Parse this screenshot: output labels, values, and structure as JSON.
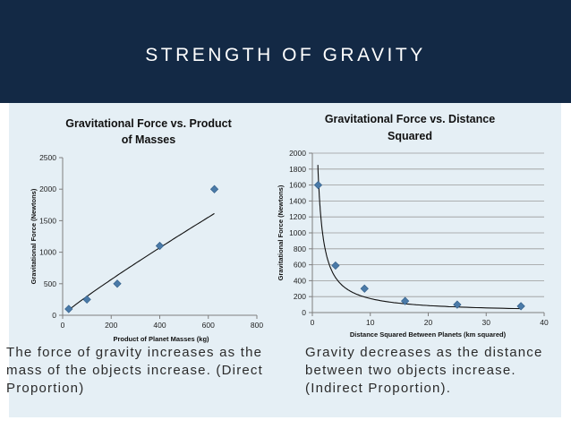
{
  "slide": {
    "title": "STRENGTH OF GRAVITY",
    "caption_left": "The force of gravity increases as the mass of the objects increase. (Direct Proportion)",
    "caption_right": "Gravity decreases as the distance between two objects increase. (Indirect Proportion).",
    "colors": {
      "header": "#132945",
      "content_bg": "#e5eff5",
      "marker": "#4a7aa8"
    }
  },
  "chart_data": [
    {
      "type": "scatter",
      "title_lines": [
        "Gravitational Force vs. Product",
        "of Masses"
      ],
      "xlabel": "Product of Planet Masses (kg)",
      "ylabel": "Gravitational Force (Newtons)",
      "xlim": [
        0,
        800
      ],
      "ylim": [
        0,
        2500
      ],
      "xticks": [
        0,
        200,
        400,
        600,
        800
      ],
      "yticks": [
        0,
        500,
        1000,
        1500,
        2000,
        2500
      ],
      "gridlines": "none",
      "trendline": true,
      "x": [
        25,
        100,
        225,
        400,
        625
      ],
      "y": [
        100,
        250,
        500,
        1100,
        2000
      ]
    },
    {
      "type": "scatter",
      "title_lines": [
        "Gravitational Force vs. Distance",
        "Squared"
      ],
      "xlabel": "Distance Squared Between Planets (km squared)",
      "ylabel": "Gravitational Force (Newtons)",
      "xlim": [
        0,
        40
      ],
      "ylim": [
        0,
        2000
      ],
      "xticks": [
        0,
        10,
        20,
        30,
        40
      ],
      "yticks": [
        0,
        200,
        400,
        600,
        800,
        1000,
        1200,
        1400,
        1600,
        1800,
        2000
      ],
      "gridlines": "horizontal",
      "trendline": true,
      "x": [
        1,
        4,
        9,
        16,
        25,
        36
      ],
      "y": [
        1600,
        590,
        300,
        145,
        100,
        80
      ]
    }
  ]
}
